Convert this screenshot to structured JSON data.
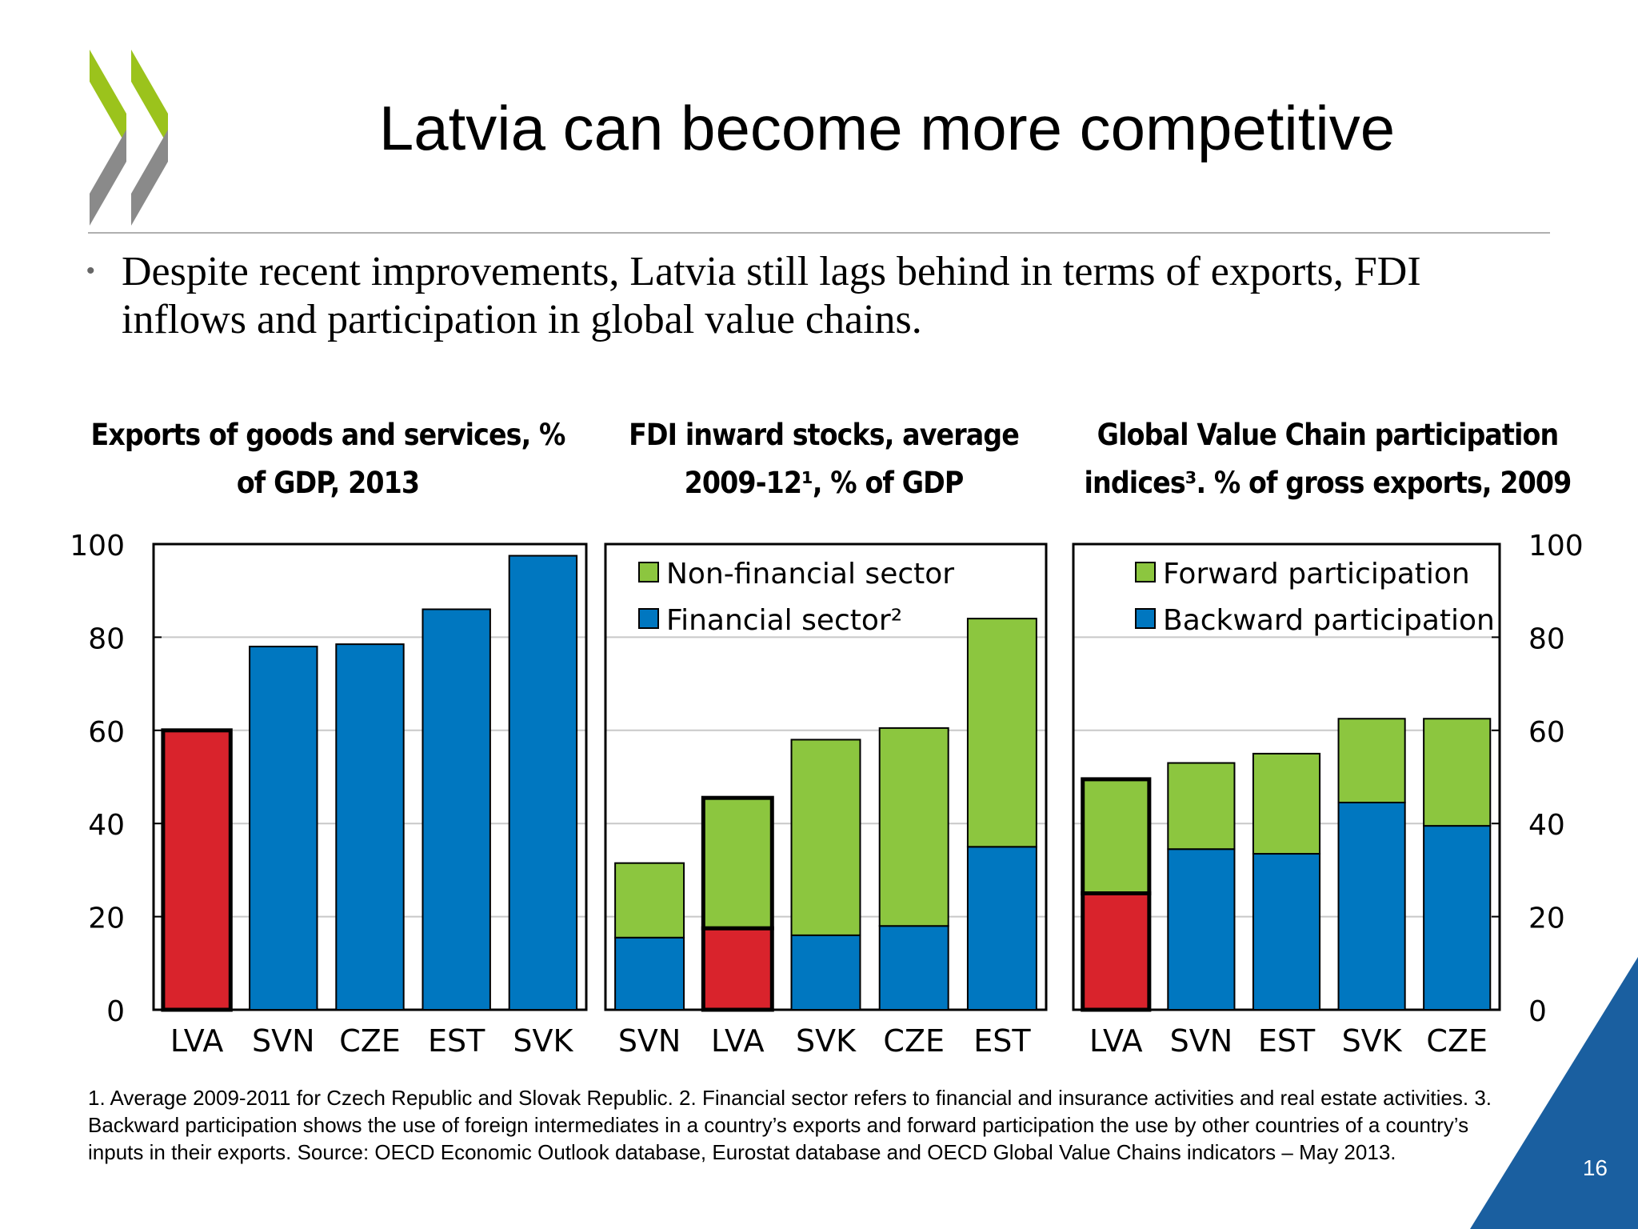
{
  "slide": {
    "title": "Latvia can become more competitive",
    "bullet": "Despite recent improvements, Latvia still lags behind in terms of exports, FDI inflows and participation in global value chains.",
    "footnote": "1. Average 2009-2011 for Czech Republic and Slovak Republic. 2. Financial sector refers to financial and insurance activities and real estate activities. 3. Backward participation shows the use of foreign intermediates in a country’s exports and forward participation the use by other countries of a country’s inputs in their exports. Source: OECD Economic Outlook database, Eurostat database and OECD Global Value Chains indicators – May 2013.",
    "page_number": "16",
    "logo_icon": "oecd-chevrons-logo"
  },
  "colors": {
    "blue": "#0077c0",
    "red": "#d9232c",
    "green": "#8cc63f",
    "gridline": "#c8c8c8",
    "corner_blue": "#1a5fa0"
  },
  "y_ticks": [
    "0",
    "20",
    "40",
    "60",
    "80",
    "100"
  ],
  "chart_data": [
    {
      "type": "bar",
      "title": "Exports of goods and services, % of GDP, 2013",
      "title_lines": [
        "Exports of goods and services, %",
        "of GDP, 2013"
      ],
      "categories": [
        "LVA",
        "SVN",
        "CZE",
        "EST",
        "SVK"
      ],
      "series": [
        {
          "values": [
            60,
            78,
            78.5,
            86,
            97.5
          ]
        }
      ],
      "highlight": "LVA",
      "ylim": [
        0,
        100
      ],
      "grid": true,
      "axis_side": "left"
    },
    {
      "type": "bar",
      "stacked": true,
      "title": "FDI inward stocks, average 2009-12¹, % of GDP",
      "title_lines": [
        "FDI inward stocks, average",
        "2009-12¹, % of GDP"
      ],
      "categories": [
        "SVN",
        "LVA",
        "SVK",
        "CZE",
        "EST"
      ],
      "series": [
        {
          "name": "Financial sector²",
          "values": [
            15.5,
            17.5,
            16,
            18,
            35
          ]
        },
        {
          "name": "Non-financial sector",
          "values": [
            16,
            28,
            42,
            42.5,
            49
          ]
        }
      ],
      "legend_order": [
        "Non-financial sector",
        "Financial sector²"
      ],
      "legend": "top-left",
      "highlight": "LVA",
      "ylim": [
        0,
        100
      ],
      "grid": true
    },
    {
      "type": "bar",
      "stacked": true,
      "title": "Global Value Chain participation indices³. % of gross exports, 2009",
      "title_lines": [
        "Global Value Chain participation",
        "indices³. % of gross exports, 2009"
      ],
      "categories": [
        "LVA",
        "SVN",
        "EST",
        "SVK",
        "CZE"
      ],
      "series": [
        {
          "name": "Backward participation",
          "values": [
            25,
            34.5,
            33.5,
            44.5,
            39.5
          ]
        },
        {
          "name": "Forward participation",
          "values": [
            24.5,
            18.5,
            21.5,
            18,
            23
          ]
        }
      ],
      "legend_order": [
        "Forward participation",
        "Backward participation"
      ],
      "legend": "top-left",
      "highlight": "LVA",
      "ylim": [
        0,
        100
      ],
      "grid": true,
      "axis_side": "right"
    }
  ]
}
